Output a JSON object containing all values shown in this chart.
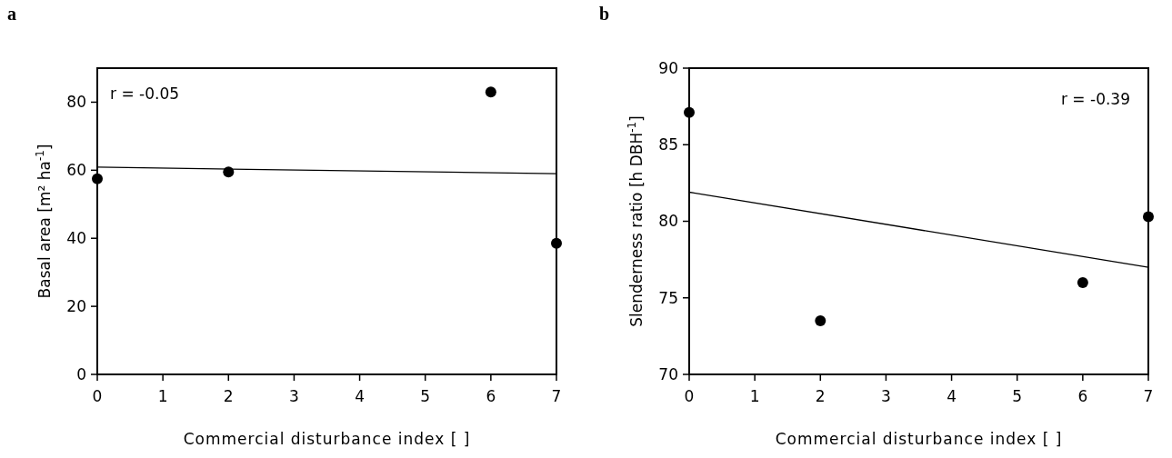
{
  "chart_data": [
    {
      "type": "scatter",
      "title": "a",
      "xlabel": "Commercial disturbance index [ ]",
      "ylabel": "Basal area [m² ha$^{-1}$]",
      "xlim": [
        0,
        7
      ],
      "xticks": [
        0,
        1,
        2,
        3,
        4,
        5,
        6,
        7
      ],
      "ylim": [
        0,
        90
      ],
      "yticks": [
        0,
        20,
        40,
        60,
        80
      ],
      "grid": false,
      "annotations": [
        "r = -0.05"
      ],
      "series": [
        {
          "color": "#000000",
          "marker": "circle",
          "x": [
            0,
            2,
            6,
            7
          ],
          "values": [
            57.5,
            59.5,
            83,
            38.5
          ]
        },
        {
          "type": "line",
          "marker": "none",
          "color": "#000000",
          "x": [
            0,
            7
          ],
          "values": [
            60.9,
            59.0
          ]
        }
      ]
    },
    {
      "type": "scatter",
      "title": "b",
      "xlabel": "Commercial disturbance index [ ]",
      "ylabel": "Slenderness ratio [h DBH$^{-1}$]",
      "xlim": [
        0,
        7
      ],
      "xticks": [
        0,
        1,
        2,
        3,
        4,
        5,
        6,
        7
      ],
      "ylim": [
        70,
        90
      ],
      "yticks": [
        70,
        75,
        80,
        85,
        90
      ],
      "grid": false,
      "annotations": [
        "r = -0.39"
      ],
      "series": [
        {
          "color": "#000000",
          "marker": "circle",
          "x": [
            0,
            2,
            6,
            7
          ],
          "values": [
            87.1,
            73.5,
            76,
            80.3
          ]
        },
        {
          "type": "line",
          "marker": "none",
          "color": "#000000",
          "x": [
            0,
            7
          ],
          "values": [
            81.9,
            77.0
          ]
        }
      ]
    }
  ]
}
